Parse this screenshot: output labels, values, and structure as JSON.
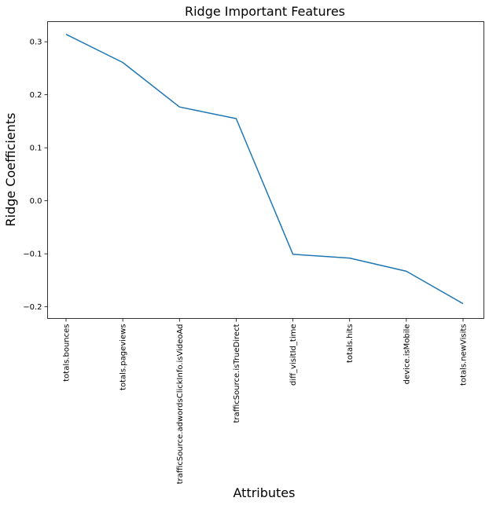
{
  "chart_data": {
    "type": "line",
    "title": "Ridge Important Features",
    "xlabel": "Attributes",
    "ylabel": "Ridge Coefficients",
    "categories": [
      "totals.bounces",
      "totals.pageviews",
      "trafficSource.adwordsClickInfo.isVideoAd",
      "trafficSource.isTrueDirect",
      "diff_visitId_time",
      "totals.hits",
      "device.isMobile",
      "totals.newVisits"
    ],
    "values": [
      0.314,
      0.261,
      0.177,
      0.155,
      -0.101,
      -0.108,
      -0.133,
      -0.194
    ],
    "ylim": [
      -0.222,
      0.338
    ],
    "yticks": [
      -0.2,
      -0.1,
      0.0,
      0.1,
      0.2,
      0.3
    ],
    "ytick_labels": [
      "−0.2",
      "−0.1",
      "0.0",
      "0.1",
      "0.2",
      "0.3"
    ],
    "line_color": "#1f77b4",
    "grid": false,
    "legend": "none"
  }
}
